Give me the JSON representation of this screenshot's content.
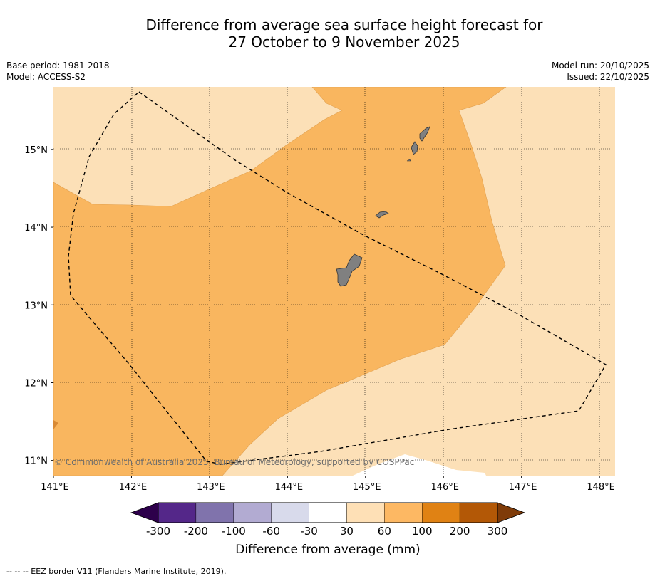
{
  "title": {
    "line1": "Difference from average sea surface height forecast for",
    "line2": "27 October to 9 November 2025"
  },
  "meta": {
    "base_period": "Base period: 1981-2018",
    "model": "Model: ACCESS-S2",
    "model_run": "Model run: 20/10/2025",
    "issued": "Issued: 22/10/2025"
  },
  "map": {
    "lat_labels": [
      "15°N",
      "14°N",
      "13°N",
      "12°N",
      "11°N"
    ],
    "lat_values": [
      15,
      14,
      13,
      12,
      11
    ],
    "lon_labels": [
      "141°E",
      "142°E",
      "143°E",
      "144°E",
      "145°E",
      "146°E",
      "147°E",
      "148°E"
    ],
    "lon_values": [
      141,
      142,
      143,
      144,
      145,
      146,
      147,
      148
    ],
    "lon_range": [
      141,
      148.2
    ],
    "lat_range": [
      10.8,
      15.8
    ],
    "copyright": "© Commonwealth of Australia 2025, Bureau of Meteorology, supported by COSPPac",
    "islands": [
      "Guam",
      "Rota",
      "Tinian",
      "Saipan"
    ],
    "colors": {
      "band_30_60": "#fce0b7",
      "band_60_100": "#f9b65f",
      "land": "#808080",
      "eez": "#000000"
    }
  },
  "colorbar": {
    "tick_labels": [
      "-300",
      "-200",
      "-100",
      "-60",
      "-30",
      "30",
      "60",
      "100",
      "200",
      "300"
    ],
    "colors": [
      "#2d004b",
      "#542789",
      "#8073ac",
      "#b2abd2",
      "#d8daeb",
      "#ffffff",
      "#fee0b6",
      "#fdb863",
      "#e08214",
      "#b35806",
      "#7f3b08"
    ],
    "label": "Difference from average (mm)"
  },
  "footnote": "--  --  -- EEZ border V11 (Flanders Marine Institute, 2019)."
}
